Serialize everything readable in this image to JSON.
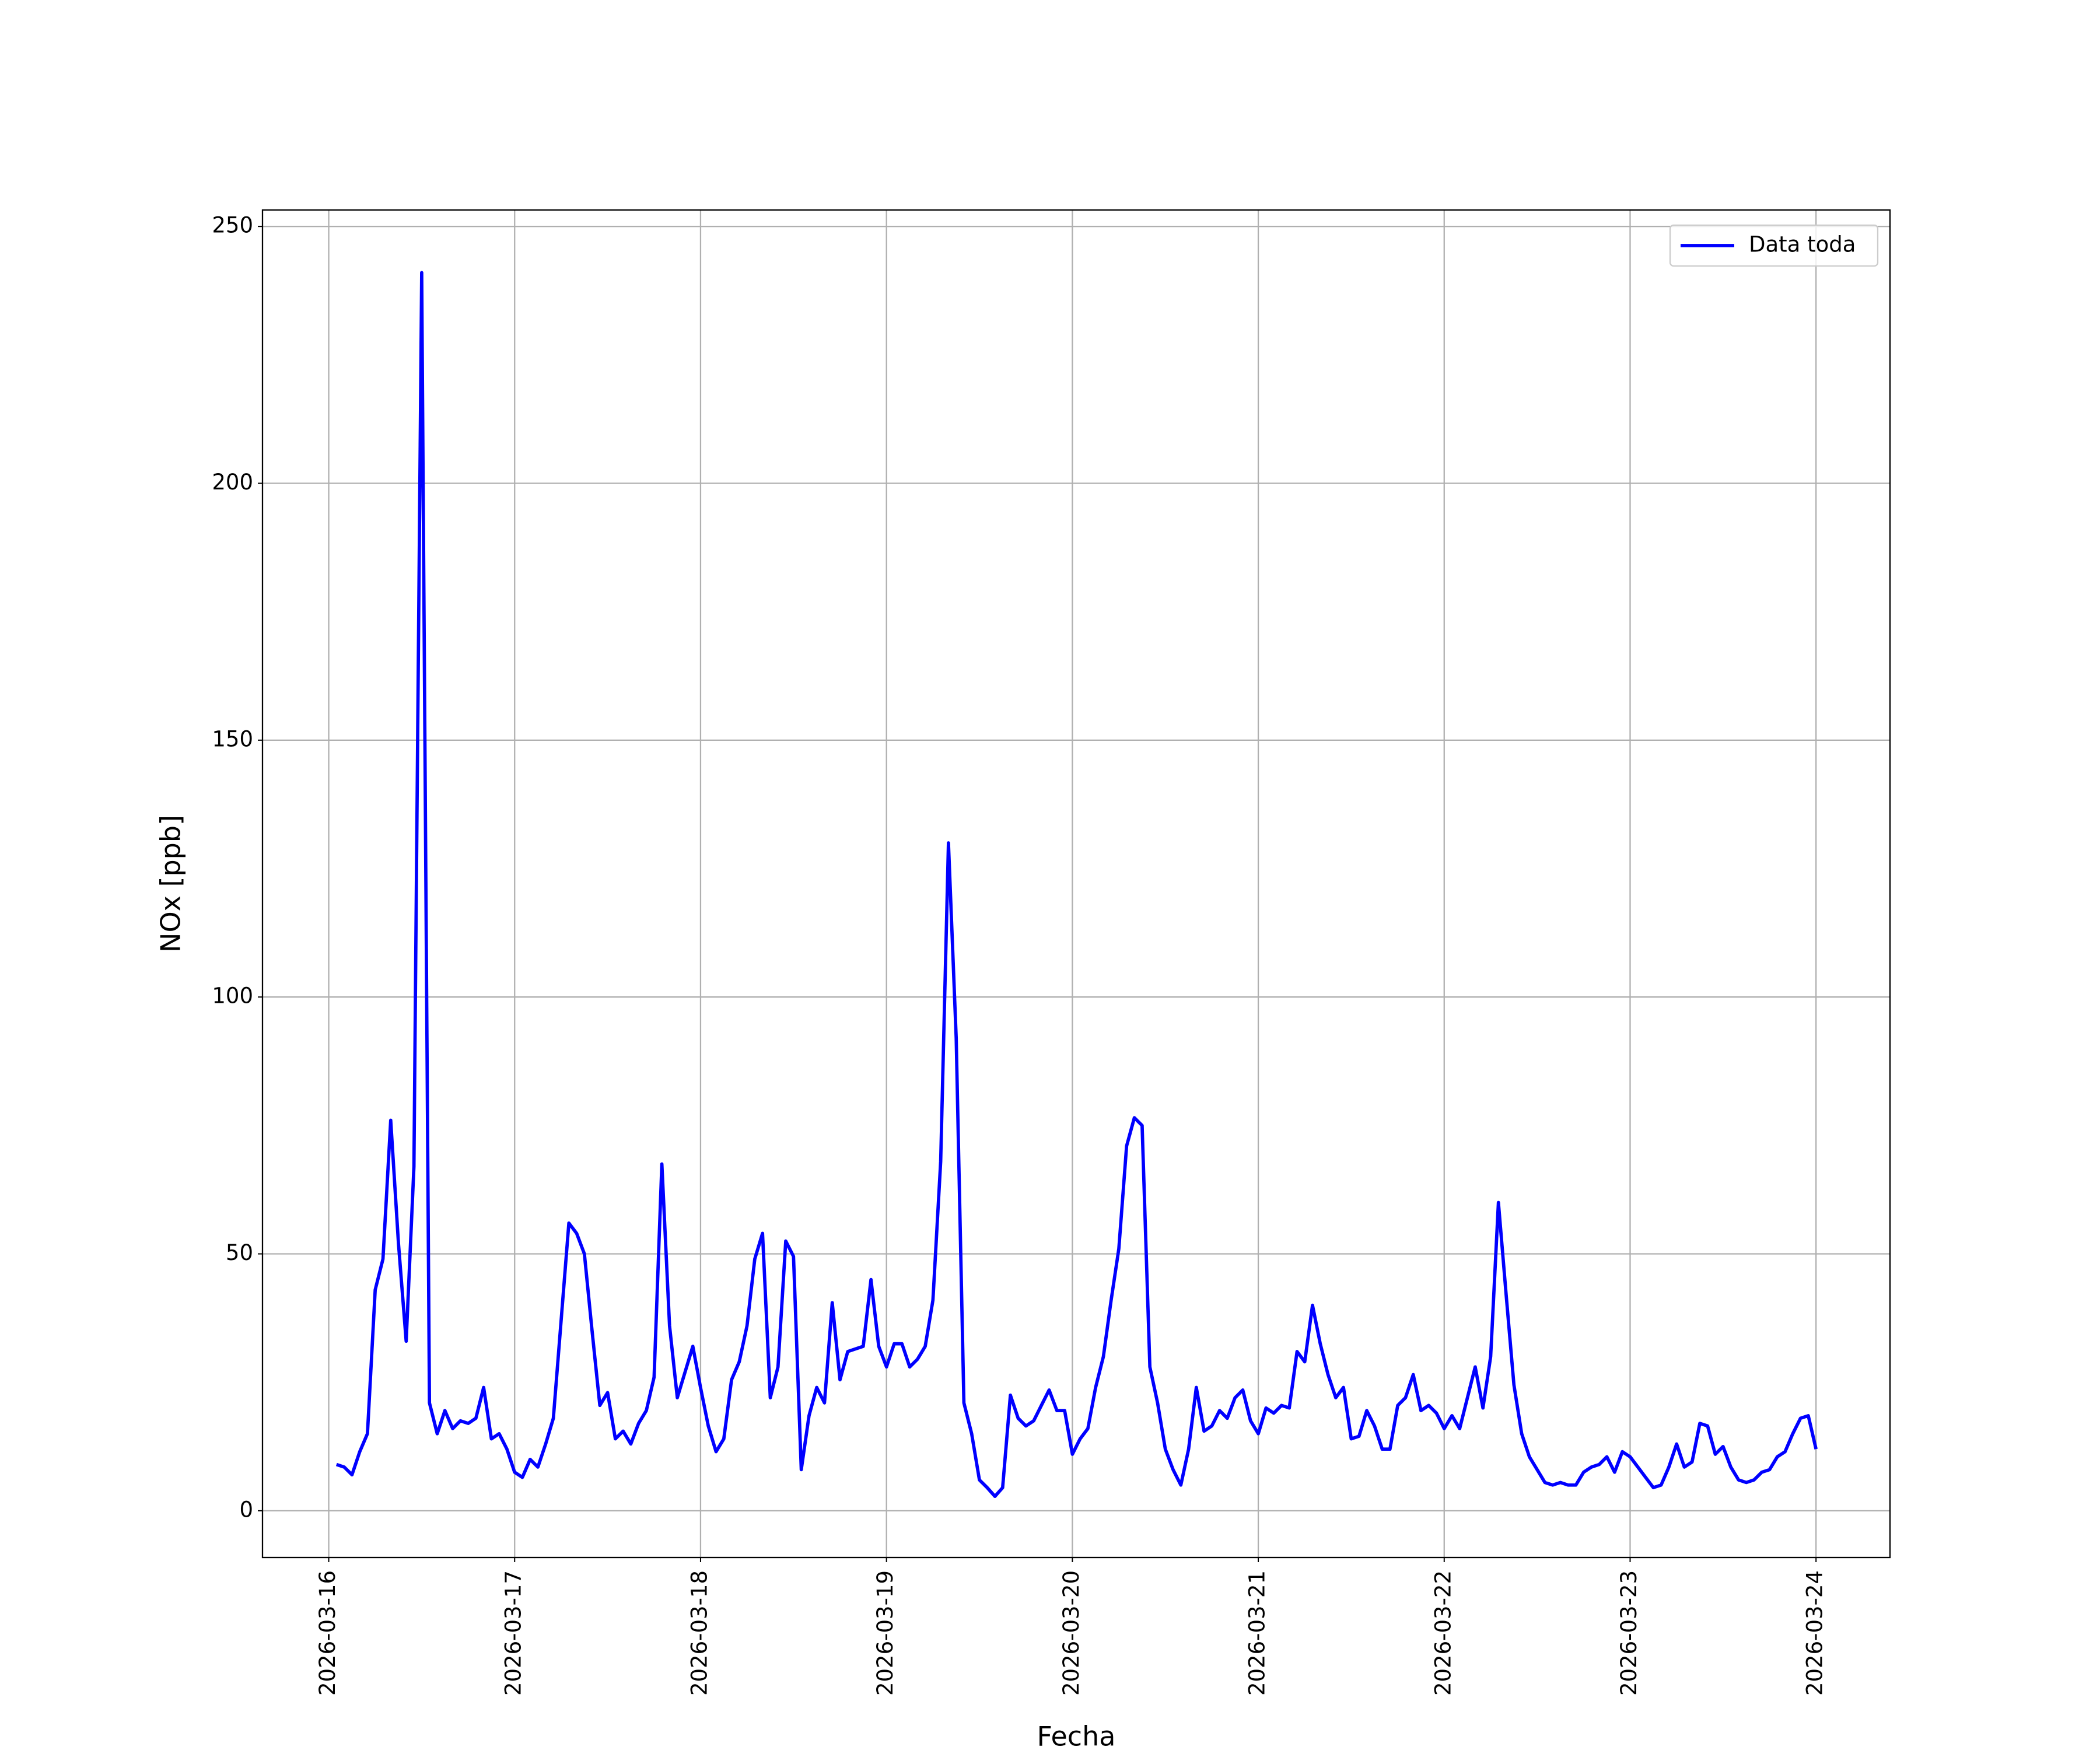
{
  "chart_data": {
    "type": "line",
    "x_label": "Fecha",
    "y_label": "NOx [ppb]",
    "x": [
      "2026-03-16 01:00",
      "2026-03-16 02:00",
      "2026-03-16 03:00",
      "2026-03-16 04:00",
      "2026-03-16 05:00",
      "2026-03-16 06:00",
      "2026-03-16 07:00",
      "2026-03-16 08:00",
      "2026-03-16 09:00",
      "2026-03-16 10:00",
      "2026-03-16 11:00",
      "2026-03-16 12:00",
      "2026-03-16 13:00",
      "2026-03-16 14:00",
      "2026-03-16 15:00",
      "2026-03-16 16:00",
      "2026-03-16 17:00",
      "2026-03-16 18:00",
      "2026-03-16 19:00",
      "2026-03-16 20:00",
      "2026-03-16 21:00",
      "2026-03-16 22:00",
      "2026-03-16 23:00",
      "2026-03-17 00:00",
      "2026-03-17 01:00",
      "2026-03-17 02:00",
      "2026-03-17 03:00",
      "2026-03-17 04:00",
      "2026-03-17 05:00",
      "2026-03-17 06:00",
      "2026-03-17 07:00",
      "2026-03-17 08:00",
      "2026-03-17 09:00",
      "2026-03-17 10:00",
      "2026-03-17 11:00",
      "2026-03-17 12:00",
      "2026-03-17 13:00",
      "2026-03-17 14:00",
      "2026-03-17 15:00",
      "2026-03-17 16:00",
      "2026-03-17 17:00",
      "2026-03-17 18:00",
      "2026-03-17 19:00",
      "2026-03-17 20:00",
      "2026-03-17 21:00",
      "2026-03-17 22:00",
      "2026-03-17 23:00",
      "2026-03-18 00:00",
      "2026-03-18 01:00",
      "2026-03-18 02:00",
      "2026-03-18 03:00",
      "2026-03-18 04:00",
      "2026-03-18 05:00",
      "2026-03-18 06:00",
      "2026-03-18 07:00",
      "2026-03-18 08:00",
      "2026-03-18 09:00",
      "2026-03-18 10:00",
      "2026-03-18 11:00",
      "2026-03-18 12:00",
      "2026-03-18 13:00",
      "2026-03-18 14:00",
      "2026-03-18 15:00",
      "2026-03-18 16:00",
      "2026-03-18 17:00",
      "2026-03-18 18:00",
      "2026-03-18 19:00",
      "2026-03-18 20:00",
      "2026-03-18 21:00",
      "2026-03-18 22:00",
      "2026-03-18 23:00",
      "2026-03-19 00:00",
      "2026-03-19 01:00",
      "2026-03-19 02:00",
      "2026-03-19 03:00",
      "2026-03-19 04:00",
      "2026-03-19 05:00",
      "2026-03-19 06:00",
      "2026-03-19 07:00",
      "2026-03-19 08:00",
      "2026-03-19 09:00",
      "2026-03-19 10:00",
      "2026-03-19 11:00",
      "2026-03-19 12:00",
      "2026-03-19 13:00",
      "2026-03-19 14:00",
      "2026-03-19 15:00",
      "2026-03-19 16:00",
      "2026-03-19 17:00",
      "2026-03-19 18:00",
      "2026-03-19 19:00",
      "2026-03-19 20:00",
      "2026-03-19 21:00",
      "2026-03-19 22:00",
      "2026-03-19 23:00",
      "2026-03-20 00:00",
      "2026-03-20 01:00",
      "2026-03-20 02:00",
      "2026-03-20 03:00",
      "2026-03-20 04:00",
      "2026-03-20 05:00",
      "2026-03-20 06:00",
      "2026-03-20 07:00",
      "2026-03-20 08:00",
      "2026-03-20 09:00",
      "2026-03-20 10:00",
      "2026-03-20 11:00",
      "2026-03-20 12:00",
      "2026-03-20 13:00",
      "2026-03-20 14:00",
      "2026-03-20 15:00",
      "2026-03-20 16:00",
      "2026-03-20 17:00",
      "2026-03-20 18:00",
      "2026-03-20 19:00",
      "2026-03-20 20:00",
      "2026-03-20 21:00",
      "2026-03-20 22:00",
      "2026-03-20 23:00",
      "2026-03-21 00:00",
      "2026-03-21 01:00",
      "2026-03-21 02:00",
      "2026-03-21 03:00",
      "2026-03-21 04:00",
      "2026-03-21 05:00",
      "2026-03-21 06:00",
      "2026-03-21 07:00",
      "2026-03-21 08:00",
      "2026-03-21 09:00",
      "2026-03-21 10:00",
      "2026-03-21 11:00",
      "2026-03-21 12:00",
      "2026-03-21 13:00",
      "2026-03-21 14:00",
      "2026-03-21 15:00",
      "2026-03-21 16:00",
      "2026-03-21 17:00",
      "2026-03-21 18:00",
      "2026-03-21 19:00",
      "2026-03-21 20:00",
      "2026-03-21 21:00",
      "2026-03-21 22:00",
      "2026-03-21 23:00",
      "2026-03-22 00:00",
      "2026-03-22 01:00",
      "2026-03-22 02:00",
      "2026-03-22 03:00",
      "2026-03-22 04:00",
      "2026-03-22 05:00",
      "2026-03-22 06:00",
      "2026-03-22 07:00",
      "2026-03-22 08:00",
      "2026-03-22 09:00",
      "2026-03-22 10:00",
      "2026-03-22 11:00",
      "2026-03-22 12:00",
      "2026-03-22 13:00",
      "2026-03-22 14:00",
      "2026-03-22 15:00",
      "2026-03-22 16:00",
      "2026-03-22 17:00",
      "2026-03-22 18:00",
      "2026-03-22 19:00",
      "2026-03-22 20:00",
      "2026-03-22 21:00",
      "2026-03-22 22:00",
      "2026-03-22 23:00",
      "2026-03-23 00:00",
      "2026-03-23 01:00",
      "2026-03-23 02:00",
      "2026-03-23 03:00",
      "2026-03-23 04:00",
      "2026-03-23 05:00",
      "2026-03-23 06:00",
      "2026-03-23 07:00",
      "2026-03-23 08:00",
      "2026-03-23 09:00",
      "2026-03-23 10:00",
      "2026-03-23 11:00",
      "2026-03-23 12:00",
      "2026-03-23 13:00",
      "2026-03-23 14:00",
      "2026-03-23 15:00",
      "2026-03-23 16:00",
      "2026-03-23 17:00",
      "2026-03-23 18:00",
      "2026-03-23 19:00",
      "2026-03-23 20:00",
      "2026-03-23 21:00",
      "2026-03-23 22:00",
      "2026-03-23 23:00",
      "2026-03-24 00:00"
    ],
    "series": [
      {
        "name": "Data toda",
        "color": "#0000ff",
        "values": [
          9,
          8.5,
          7,
          11.5,
          15,
          43,
          49,
          76,
          52,
          33,
          67,
          241,
          21,
          15,
          19.5,
          16,
          17.5,
          17,
          18,
          24,
          14,
          15,
          12,
          7.5,
          6.5,
          10,
          8.5,
          13,
          18,
          37,
          56,
          54,
          50,
          35,
          20.5,
          23,
          14,
          15.5,
          13,
          17,
          19.5,
          26,
          67.5,
          36,
          22,
          27,
          32,
          24,
          16.5,
          11.5,
          14,
          25.5,
          29,
          36,
          49,
          54,
          22,
          28,
          52.5,
          49.5,
          8,
          18.5,
          24,
          21,
          40.5,
          25.5,
          31,
          31.5,
          32,
          45,
          32,
          28,
          32.5,
          32.5,
          28,
          29.5,
          32,
          41,
          68,
          130,
          92,
          21,
          15,
          6,
          4.5,
          2.8,
          4.5,
          22.5,
          18,
          16.5,
          17.5,
          20.5,
          23.5,
          19.5,
          19.5,
          11,
          14,
          16,
          24,
          30,
          41,
          51,
          71,
          76.5,
          75,
          28,
          21,
          12,
          8,
          5,
          12,
          24,
          15.5,
          16.5,
          19.5,
          18,
          22,
          23.5,
          17.5,
          15,
          20,
          19,
          20.5,
          20,
          31,
          29,
          40,
          32.5,
          26.5,
          22,
          24,
          14,
          14.5,
          19.5,
          16.5,
          12,
          12,
          20.5,
          22,
          26.5,
          19.5,
          20.5,
          19,
          16,
          18.5,
          16,
          22,
          28,
          20,
          30,
          60,
          42,
          24.5,
          15,
          10.5,
          8,
          5.5,
          5,
          5.5,
          5,
          5,
          7.5,
          8.5,
          9,
          10.5,
          7.5,
          11.5,
          10.5,
          8.5,
          6.5,
          4.5,
          5,
          8.5,
          13,
          8.5,
          9.5,
          17,
          16.5,
          11,
          12.5,
          8.5,
          6,
          5.5,
          6,
          7.5,
          8,
          10.5,
          11.5,
          15,
          18,
          18.5,
          12
        ]
      }
    ],
    "xlim": [
      "2026-03-15 15:27",
      "2026-03-24 09:33"
    ],
    "xticks": [
      "2026-03-16",
      "2026-03-17",
      "2026-03-18",
      "2026-03-19",
      "2026-03-20",
      "2026-03-21",
      "2026-03-22",
      "2026-03-23",
      "2026-03-24"
    ],
    "ylim": [
      -9.1,
      253.2
    ],
    "yticks": [
      0,
      50,
      100,
      150,
      200,
      250
    ],
    "grid": true,
    "legend": "upper right"
  }
}
